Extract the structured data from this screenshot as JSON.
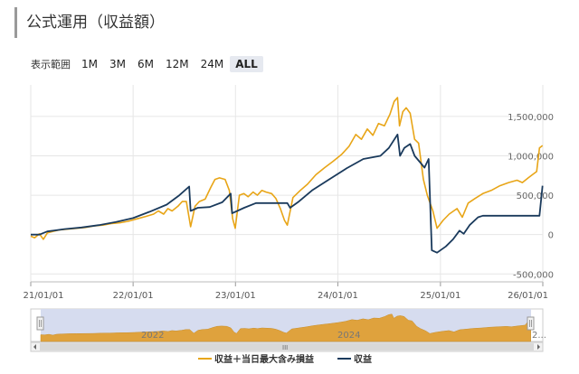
{
  "page": {
    "title": "公式運用（収益額）"
  },
  "range_selector": {
    "label": "表示範囲",
    "buttons": [
      "1M",
      "3M",
      "6M",
      "12M",
      "24M",
      "ALL"
    ],
    "selected": "ALL"
  },
  "navigator": {
    "year_labels": [
      "2022",
      "2024"
    ],
    "truncated_label": "2..."
  },
  "colors": {
    "series1": "#e8a517",
    "series2": "#1a3a5c",
    "navigator_fill": "#dfa23d",
    "navigator_bg": "#d6dcef"
  },
  "chart_data": {
    "type": "line",
    "x_tick_labels": [
      "21/01/01",
      "22/01/01",
      "23/01/01",
      "24/01/01",
      "25/01/01",
      "26/01/01"
    ],
    "y_tick_labels": [
      "1,500,000",
      "1,000,000",
      "500,000",
      "0",
      "-500,000"
    ],
    "ylim": [
      -600000,
      1900000
    ],
    "grid": true,
    "legend_position": "bottom",
    "series": [
      {
        "name": "収益＋当日最大含み損益",
        "color": "#e8a517",
        "points": [
          [
            "2021-01-01",
            -20000
          ],
          [
            "2021-01-15",
            -40000
          ],
          [
            "2021-02-01",
            10000
          ],
          [
            "2021-02-15",
            -60000
          ],
          [
            "2021-03-01",
            20000
          ],
          [
            "2021-03-20",
            40000
          ],
          [
            "2021-04-15",
            60000
          ],
          [
            "2021-05-15",
            70000
          ],
          [
            "2021-06-15",
            80000
          ],
          [
            "2021-07-15",
            90000
          ],
          [
            "2021-08-15",
            110000
          ],
          [
            "2021-09-15",
            120000
          ],
          [
            "2021-10-15",
            140000
          ],
          [
            "2021-11-15",
            150000
          ],
          [
            "2021-12-15",
            170000
          ],
          [
            "2022-01-15",
            200000
          ],
          [
            "2022-02-15",
            230000
          ],
          [
            "2022-03-15",
            260000
          ],
          [
            "2022-04-01",
            300000
          ],
          [
            "2022-04-20",
            260000
          ],
          [
            "2022-05-05",
            330000
          ],
          [
            "2022-05-20",
            300000
          ],
          [
            "2022-06-10",
            360000
          ],
          [
            "2022-06-25",
            420000
          ],
          [
            "2022-07-10",
            420000
          ],
          [
            "2022-07-25",
            100000
          ],
          [
            "2022-08-10",
            360000
          ],
          [
            "2022-08-25",
            420000
          ],
          [
            "2022-09-15",
            450000
          ],
          [
            "2022-10-05",
            600000
          ],
          [
            "2022-10-20",
            700000
          ],
          [
            "2022-11-05",
            720000
          ],
          [
            "2022-11-25",
            700000
          ],
          [
            "2022-12-10",
            560000
          ],
          [
            "2022-12-22",
            200000
          ],
          [
            "2022-12-31",
            80000
          ],
          [
            "2023-01-15",
            500000
          ],
          [
            "2023-01-31",
            520000
          ],
          [
            "2023-02-15",
            480000
          ],
          [
            "2023-03-05",
            540000
          ],
          [
            "2023-03-20",
            500000
          ],
          [
            "2023-04-05",
            560000
          ],
          [
            "2023-04-20",
            540000
          ],
          [
            "2023-05-10",
            520000
          ],
          [
            "2023-05-25",
            460000
          ],
          [
            "2023-06-10",
            330000
          ],
          [
            "2023-06-25",
            180000
          ],
          [
            "2023-07-05",
            120000
          ],
          [
            "2023-07-25",
            470000
          ],
          [
            "2023-08-20",
            560000
          ],
          [
            "2023-09-15",
            640000
          ],
          [
            "2023-10-15",
            760000
          ],
          [
            "2023-11-15",
            850000
          ],
          [
            "2023-12-15",
            930000
          ],
          [
            "2024-01-15",
            1020000
          ],
          [
            "2024-02-10",
            1120000
          ],
          [
            "2024-03-05",
            1270000
          ],
          [
            "2024-03-25",
            1210000
          ],
          [
            "2024-04-15",
            1340000
          ],
          [
            "2024-05-05",
            1260000
          ],
          [
            "2024-05-25",
            1410000
          ],
          [
            "2024-06-15",
            1380000
          ],
          [
            "2024-07-05",
            1530000
          ],
          [
            "2024-07-20",
            1690000
          ],
          [
            "2024-08-01",
            1740000
          ],
          [
            "2024-08-08",
            1380000
          ],
          [
            "2024-08-20",
            1560000
          ],
          [
            "2024-09-01",
            1610000
          ],
          [
            "2024-09-15",
            1540000
          ],
          [
            "2024-10-01",
            1210000
          ],
          [
            "2024-10-15",
            1160000
          ],
          [
            "2024-11-01",
            700000
          ],
          [
            "2024-11-15",
            500000
          ],
          [
            "2024-12-05",
            300000
          ],
          [
            "2024-12-20",
            80000
          ],
          [
            "2025-01-10",
            180000
          ],
          [
            "2025-02-01",
            260000
          ],
          [
            "2025-03-01",
            330000
          ],
          [
            "2025-03-20",
            220000
          ],
          [
            "2025-04-10",
            400000
          ],
          [
            "2025-05-05",
            460000
          ],
          [
            "2025-06-01",
            520000
          ],
          [
            "2025-07-01",
            560000
          ],
          [
            "2025-08-01",
            620000
          ],
          [
            "2025-09-01",
            660000
          ],
          [
            "2025-10-01",
            690000
          ],
          [
            "2025-10-20",
            660000
          ],
          [
            "2025-11-10",
            720000
          ],
          [
            "2025-11-25",
            760000
          ],
          [
            "2025-12-10",
            800000
          ],
          [
            "2025-12-20",
            1100000
          ],
          [
            "2025-12-31",
            1130000
          ]
        ]
      },
      {
        "name": "収益",
        "color": "#1a3a5c",
        "points": [
          [
            "2021-01-01",
            0
          ],
          [
            "2021-02-01",
            0
          ],
          [
            "2021-03-01",
            40000
          ],
          [
            "2021-05-01",
            70000
          ],
          [
            "2021-07-01",
            90000
          ],
          [
            "2021-09-01",
            120000
          ],
          [
            "2021-11-01",
            160000
          ],
          [
            "2022-01-01",
            210000
          ],
          [
            "2022-03-01",
            290000
          ],
          [
            "2022-05-01",
            380000
          ],
          [
            "2022-06-15",
            500000
          ],
          [
            "2022-07-20",
            610000
          ],
          [
            "2022-07-25",
            300000
          ],
          [
            "2022-08-20",
            340000
          ],
          [
            "2022-10-01",
            350000
          ],
          [
            "2022-11-15",
            410000
          ],
          [
            "2022-12-15",
            520000
          ],
          [
            "2022-12-20",
            270000
          ],
          [
            "2023-02-01",
            340000
          ],
          [
            "2023-03-15",
            400000
          ],
          [
            "2023-06-15",
            400000
          ],
          [
            "2023-07-05",
            400000
          ],
          [
            "2023-07-15",
            340000
          ],
          [
            "2023-08-15",
            420000
          ],
          [
            "2023-10-01",
            560000
          ],
          [
            "2023-12-01",
            700000
          ],
          [
            "2024-02-01",
            840000
          ],
          [
            "2024-04-01",
            960000
          ],
          [
            "2024-06-01",
            1000000
          ],
          [
            "2024-07-01",
            1100000
          ],
          [
            "2024-08-01",
            1270000
          ],
          [
            "2024-08-10",
            1000000
          ],
          [
            "2024-08-25",
            1100000
          ],
          [
            "2024-09-15",
            1150000
          ],
          [
            "2024-10-01",
            1000000
          ],
          [
            "2024-10-20",
            920000
          ],
          [
            "2024-11-05",
            850000
          ],
          [
            "2024-11-20",
            960000
          ],
          [
            "2024-12-01",
            -200000
          ],
          [
            "2024-12-20",
            -230000
          ],
          [
            "2025-01-20",
            -150000
          ],
          [
            "2025-02-15",
            -60000
          ],
          [
            "2025-03-10",
            50000
          ],
          [
            "2025-03-25",
            10000
          ],
          [
            "2025-04-15",
            120000
          ],
          [
            "2025-05-15",
            220000
          ],
          [
            "2025-06-01",
            240000
          ],
          [
            "2025-12-20",
            240000
          ],
          [
            "2025-12-31",
            620000
          ]
        ]
      }
    ]
  }
}
